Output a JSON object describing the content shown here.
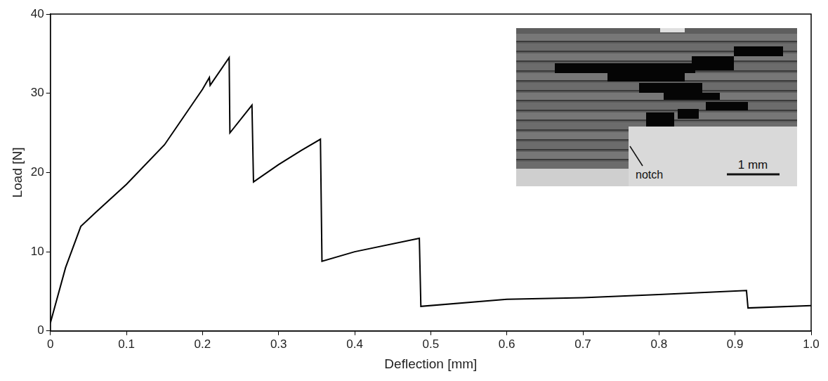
{
  "chart_data": {
    "type": "line",
    "x_label": "Deflection [mm]",
    "y_label": "Load [N]",
    "x": [
      0,
      0.02,
      0.04,
      0.06,
      0.1,
      0.15,
      0.2,
      0.209,
      0.21,
      0.235,
      0.236,
      0.265,
      0.267,
      0.3,
      0.33,
      0.355,
      0.357,
      0.4,
      0.485,
      0.487,
      0.6,
      0.7,
      0.8,
      0.915,
      0.917,
      1.0
    ],
    "series": [
      {
        "name": "Load",
        "color": "#000000",
        "line_style": "solid",
        "values": [
          1,
          8,
          13.2,
          15,
          18.5,
          23.5,
          30.5,
          32,
          31,
          34.5,
          25,
          28.5,
          18.8,
          21,
          22.8,
          24.2,
          8.8,
          10,
          11.7,
          3.1,
          4,
          4.2,
          4.6,
          5.1,
          2.9,
          3.2
        ]
      }
    ],
    "xlim": [
      0,
      1
    ],
    "xticks": [
      0,
      0.1,
      0.2,
      0.3,
      0.4,
      0.5,
      0.6,
      0.7,
      0.8,
      0.9,
      {
        "value": 1,
        "label": "1.0"
      }
    ],
    "ylim": [
      0,
      40
    ],
    "yticks": [
      0,
      10,
      20,
      30,
      40
    ],
    "grid": false,
    "annotations": [
      "notch",
      "1 mm"
    ]
  }
}
